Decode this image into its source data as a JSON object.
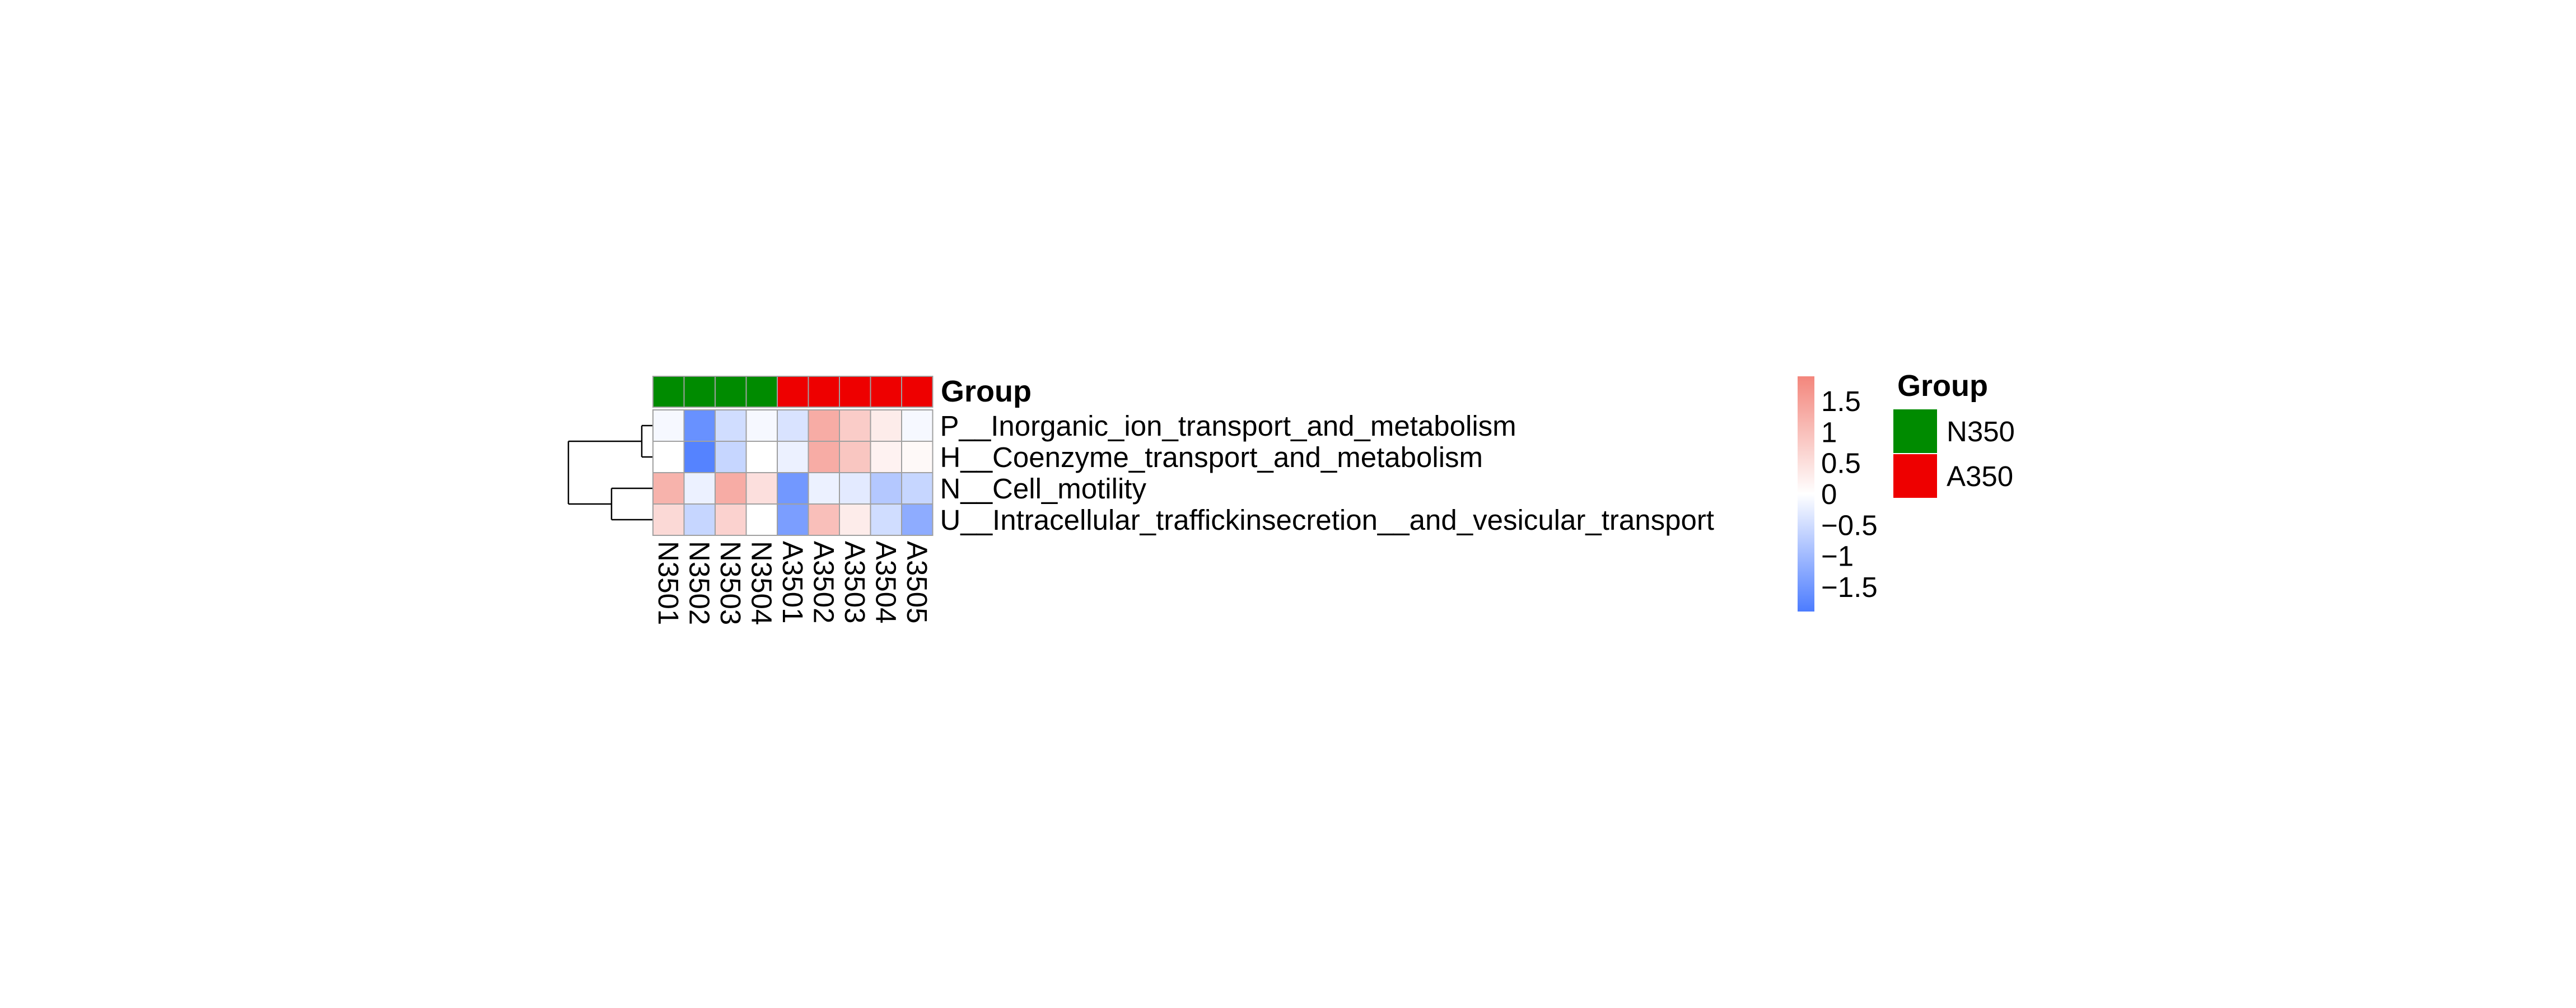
{
  "chart_data": {
    "type": "heatmap",
    "columns": [
      "N3501",
      "N3502",
      "N3503",
      "N3504",
      "A3501",
      "A3502",
      "A3503",
      "A3504",
      "A3505"
    ],
    "column_groups": [
      "N350",
      "N350",
      "N350",
      "N350",
      "A350",
      "A350",
      "A350",
      "A350",
      "A350"
    ],
    "rows": [
      "P__Inorganic_ion_transport_and_metabolism",
      "H__Coenzyme_transport_and_metabolism",
      "N__Cell_motility",
      "U__Intracellular_traffickinsecretion__and_vesicular_transport"
    ],
    "values": [
      [
        -0.1,
        -1.6,
        -0.5,
        -0.1,
        -0.4,
        1.3,
        0.8,
        0.3,
        -0.1
      ],
      [
        0.0,
        -1.8,
        -0.6,
        0.0,
        -0.2,
        1.3,
        0.9,
        0.2,
        0.1
      ],
      [
        1.2,
        -0.2,
        1.3,
        0.5,
        -1.5,
        -0.2,
        -0.3,
        -0.8,
        -0.6
      ],
      [
        0.6,
        -0.6,
        0.7,
        0.0,
        -1.4,
        1.0,
        0.3,
        -0.5,
        -1.2
      ]
    ],
    "annotation": {
      "title": "Group",
      "legend_title": "Group",
      "levels": [
        {
          "name": "N350",
          "color": "#008B00"
        },
        {
          "name": "A350",
          "color": "#EE0000"
        }
      ]
    },
    "color_scale": {
      "min": -1.9,
      "max": 1.9,
      "low_color": "#4C7CFF",
      "mid_color": "#FFFFFF",
      "high_color": "#F3867C",
      "tick_labels": [
        "1.5",
        "1",
        "0.5",
        "0",
        "−0.5",
        "−1",
        "−1.5"
      ],
      "tick_values": [
        1.5,
        1,
        0.5,
        0,
        -0.5,
        -1,
        -1.5
      ]
    },
    "row_dendrogram": true,
    "cell_border_color": "#A0A0A0"
  }
}
